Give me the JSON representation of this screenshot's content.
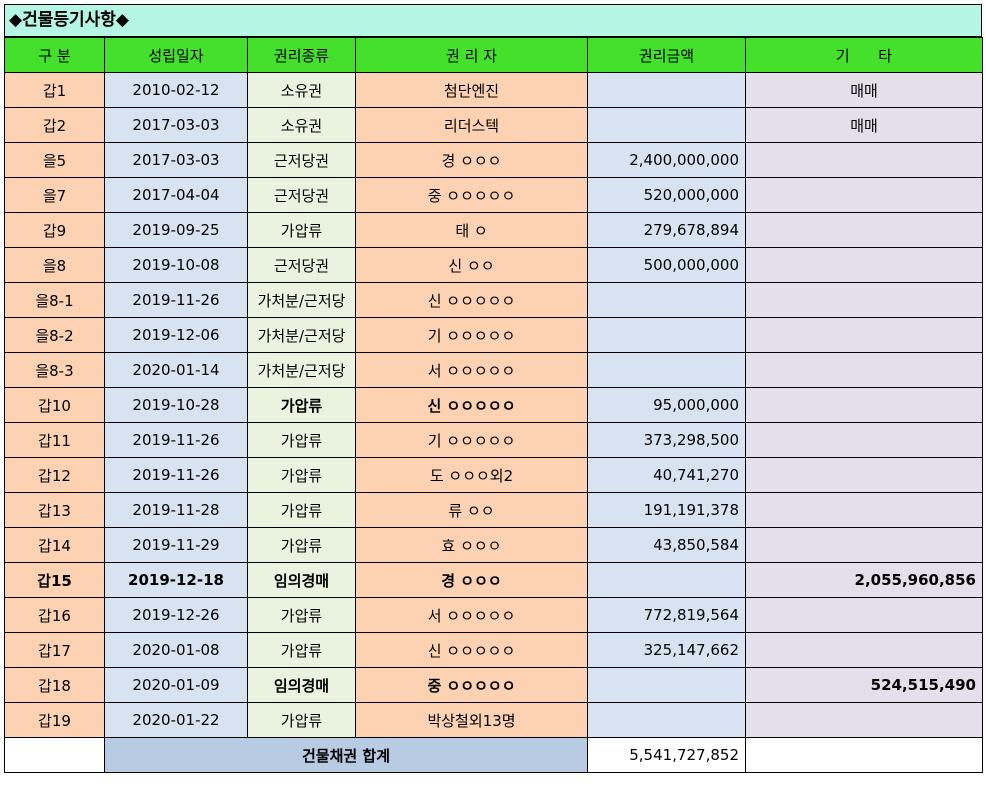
{
  "title": "◆건물등기사항◆",
  "headers": [
    "구 분",
    "성립일자",
    "권리종류",
    "권 리 자",
    "권리금액",
    "기      타"
  ],
  "rows": [
    {
      "id": "갑1",
      "date": "2010-02-12",
      "kind": "소유권",
      "holder": "첨단엔진",
      "amount": "",
      "other": "매매",
      "bold": false,
      "other_num": false
    },
    {
      "id": "갑2",
      "date": "2017-03-03",
      "kind": "소유권",
      "holder": "리더스텍",
      "amount": "",
      "other": "매매",
      "bold": false,
      "other_num": false
    },
    {
      "id": "을5",
      "date": "2017-03-03",
      "kind": "근저당권",
      "holder": "경 ㅇㅇㅇ",
      "amount": "2,400,000,000",
      "other": "",
      "bold": false,
      "other_num": false
    },
    {
      "id": "을7",
      "date": "2017-04-04",
      "kind": "근저당권",
      "holder": "중 ㅇㅇㅇㅇㅇ",
      "amount": "520,000,000",
      "other": "",
      "bold": false,
      "other_num": false
    },
    {
      "id": "갑9",
      "date": "2019-09-25",
      "kind": "가압류",
      "holder": "태 ㅇ",
      "amount": "279,678,894",
      "other": "",
      "bold": false,
      "other_num": false
    },
    {
      "id": "을8",
      "date": "2019-10-08",
      "kind": "근저당권",
      "holder": "신 ㅇㅇ",
      "amount": "500,000,000",
      "other": "",
      "bold": false,
      "other_num": false
    },
    {
      "id": "을8-1",
      "date": "2019-11-26",
      "kind": "가처분/근저당",
      "holder": "신 ㅇㅇㅇㅇㅇ",
      "amount": "",
      "other": "",
      "bold": false,
      "other_num": false
    },
    {
      "id": "을8-2",
      "date": "2019-12-06",
      "kind": "가처분/근저당",
      "holder": "기 ㅇㅇㅇㅇㅇ",
      "amount": "",
      "other": "",
      "bold": false,
      "other_num": false
    },
    {
      "id": "을8-3",
      "date": "2020-01-14",
      "kind": "가처분/근저당",
      "holder": "서 ㅇㅇㅇㅇㅇ",
      "amount": "",
      "other": "",
      "bold": false,
      "other_num": false
    },
    {
      "id": "갑10",
      "date": "2019-10-28",
      "kind": "가압류",
      "holder": "신 ㅇㅇㅇㅇㅇ",
      "amount": "95,000,000",
      "other": "",
      "bold": false,
      "kind_bold": true,
      "holder_bold": true,
      "other_num": false
    },
    {
      "id": "갑11",
      "date": "2019-11-26",
      "kind": "가압류",
      "holder": "기 ㅇㅇㅇㅇㅇ",
      "amount": "373,298,500",
      "other": "",
      "bold": false,
      "other_num": false
    },
    {
      "id": "갑12",
      "date": "2019-11-26",
      "kind": "가압류",
      "holder": "도 ㅇㅇㅇ외2",
      "amount": "40,741,270",
      "other": "",
      "bold": false,
      "other_num": false
    },
    {
      "id": "갑13",
      "date": "2019-11-28",
      "kind": "가압류",
      "holder": "류 ㅇㅇ",
      "amount": "191,191,378",
      "other": "",
      "bold": false,
      "other_num": false
    },
    {
      "id": "갑14",
      "date": "2019-11-29",
      "kind": "가압류",
      "holder": "효 ㅇㅇㅇ",
      "amount": "43,850,584",
      "other": "",
      "bold": false,
      "other_num": false
    },
    {
      "id": "갑15",
      "date": "2019-12-18",
      "kind": "임의경매",
      "holder": "경 ㅇㅇㅇ",
      "amount": "",
      "other": "2,055,960,856",
      "bold": true,
      "other_num": true
    },
    {
      "id": "갑16",
      "date": "2019-12-26",
      "kind": "가압류",
      "holder": "서 ㅇㅇㅇㅇㅇ",
      "amount": "772,819,564",
      "other": "",
      "bold": false,
      "other_num": false
    },
    {
      "id": "갑17",
      "date": "2020-01-08",
      "kind": "가압류",
      "holder": "신 ㅇㅇㅇㅇㅇ",
      "amount": "325,147,662",
      "other": "",
      "bold": false,
      "other_num": false
    },
    {
      "id": "갑18",
      "date": "2020-01-09",
      "kind": "임의경매",
      "holder": "중 ㅇㅇㅇㅇㅇ",
      "amount": "",
      "other": "524,515,490",
      "bold": false,
      "kind_bold": true,
      "holder_bold": true,
      "other_bold": true,
      "other_num": true
    },
    {
      "id": "갑19",
      "date": "2020-01-22",
      "kind": "가압류",
      "holder": "박상철외13명",
      "amount": "",
      "other": "",
      "bold": false,
      "other_num": false
    }
  ],
  "total": {
    "label": "건물채권 합계",
    "value": "5,541,727,852"
  }
}
